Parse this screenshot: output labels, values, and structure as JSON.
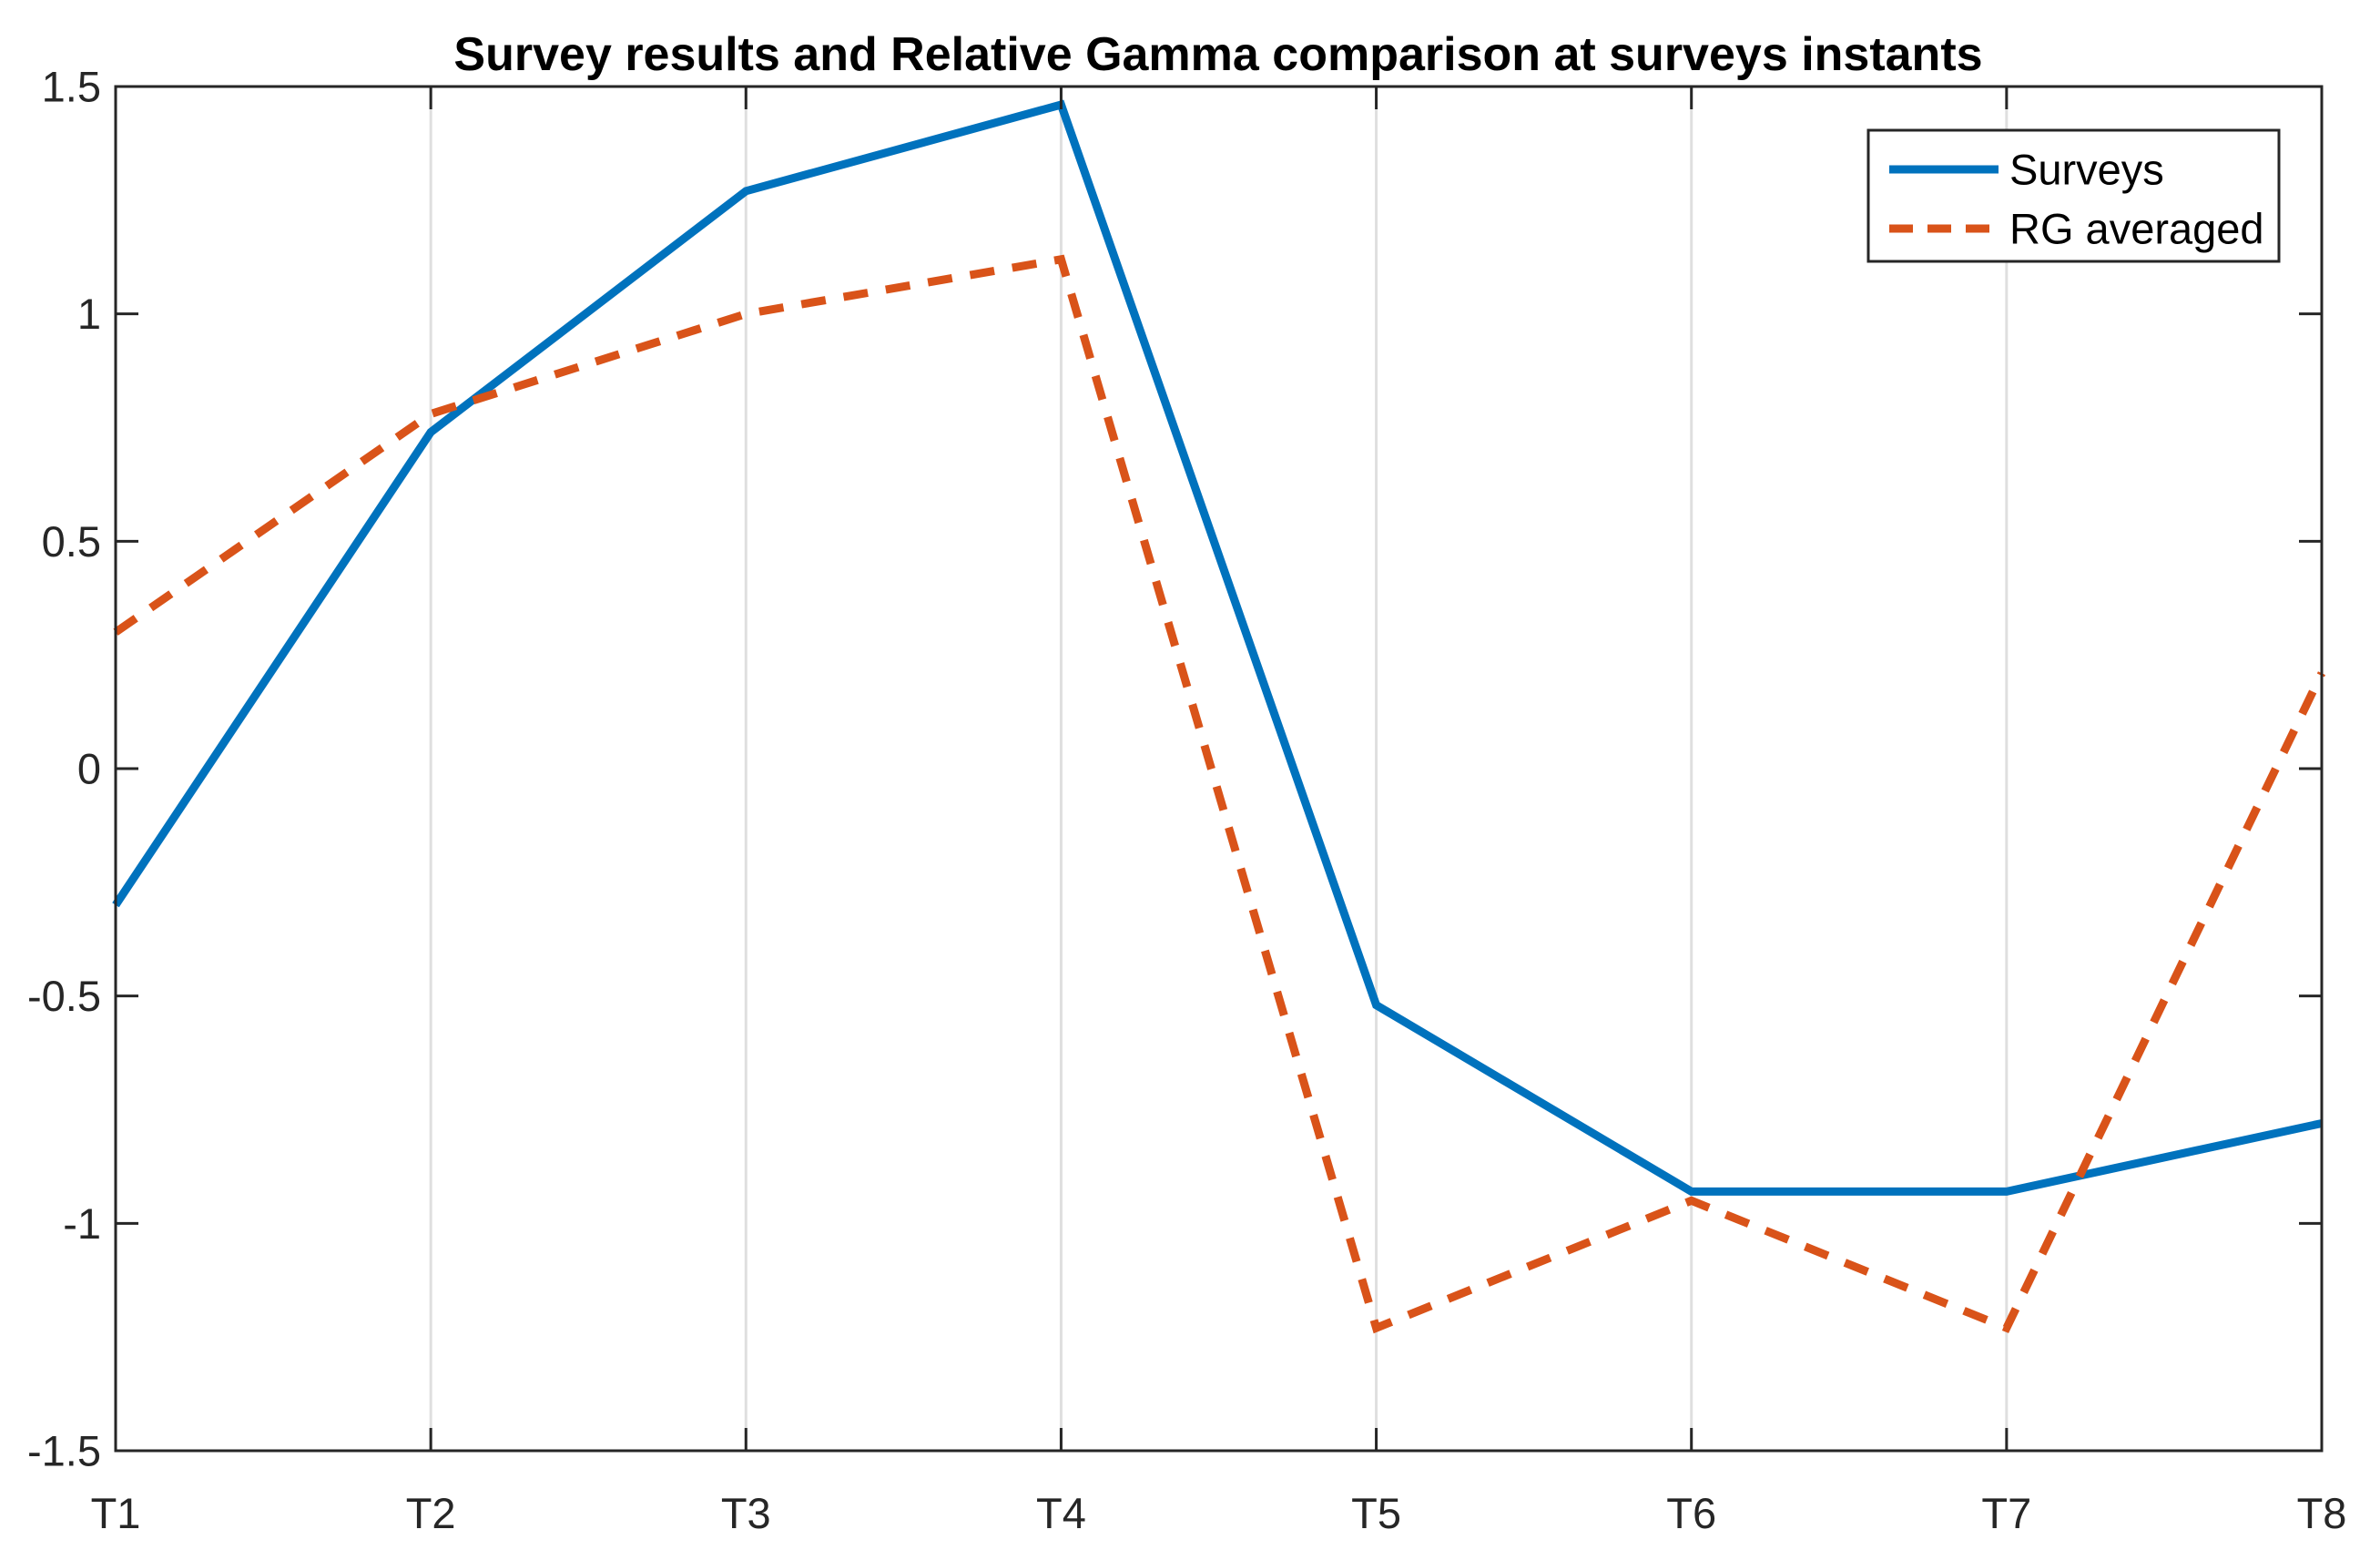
{
  "figure": {
    "background_color": "#ffffff",
    "axis_color": "#262626",
    "grid_color": "#dfdfdf",
    "legend": {
      "border_color": "#262626",
      "background_color": "#ffffff",
      "position": "northeast",
      "entries": [
        "Surveys",
        "RG averaged"
      ]
    }
  },
  "chart_data": {
    "type": "line",
    "title": "Survey results and Relative Gamma comparison at surveys instants",
    "xlabel": "",
    "ylabel": "",
    "categories": [
      "T1",
      "T2",
      "T3",
      "T4",
      "T5",
      "T6",
      "T7",
      "T8"
    ],
    "y_tick_labels": [
      "1.5",
      "1",
      "0.5",
      "0",
      "-0.5",
      "-1",
      "-1.5"
    ],
    "y_ticks": [
      1.5,
      1,
      0.5,
      0,
      -0.5,
      -1,
      -1.5
    ],
    "ylim": [
      -1.5,
      1.5
    ],
    "grid": "vertical-x-gridlines-only",
    "legend_position": "top-right",
    "series": [
      {
        "name": "Surveys",
        "color": "#0072BD",
        "style": "solid",
        "values": [
          -0.3,
          0.74,
          1.27,
          1.46,
          -0.52,
          -0.93,
          -0.93,
          -0.78
        ]
      },
      {
        "name": "RG averaged",
        "color": "#D95319",
        "style": "dashed",
        "values": [
          0.3,
          0.78,
          1.0,
          1.12,
          -1.23,
          -0.95,
          -1.23,
          0.21
        ]
      }
    ]
  }
}
